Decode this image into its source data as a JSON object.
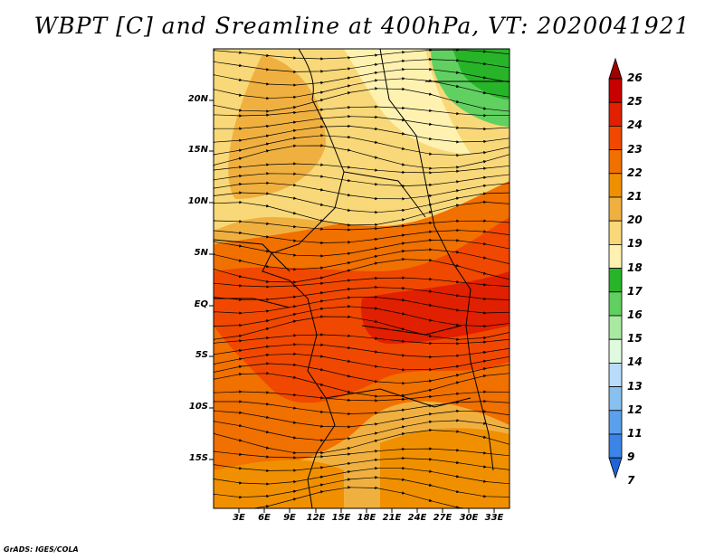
{
  "title": "WBPT [C] and Sreamline at 400hPa, VT: 2020041921",
  "credit": "GrADS: IGES/COLA",
  "map": {
    "lat_ticks": [
      "20N",
      "15N",
      "10N",
      "5N",
      "EQ",
      "5S",
      "10S",
      "15S"
    ],
    "lon_ticks": [
      "3E",
      "6E",
      "9E",
      "12E",
      "15E",
      "18E",
      "21E",
      "24E",
      "27E",
      "30E",
      "33E"
    ]
  },
  "colorbar": {
    "labels": [
      "26",
      "25",
      "24",
      "23",
      "22",
      "21",
      "20",
      "19",
      "18",
      "17",
      "16",
      "15",
      "14",
      "13",
      "12",
      "11",
      "9",
      "7"
    ],
    "colors": [
      "#a00000",
      "#c80000",
      "#e02000",
      "#f04800",
      "#f07000",
      "#f09000",
      "#f0b040",
      "#f8d878",
      "#fff2b0",
      "#28b428",
      "#60d060",
      "#a8eaa0",
      "#e0fae0",
      "#b8dcfa",
      "#88c0f0",
      "#5aa0ec",
      "#3c84e8",
      "#1e64d8"
    ]
  }
}
